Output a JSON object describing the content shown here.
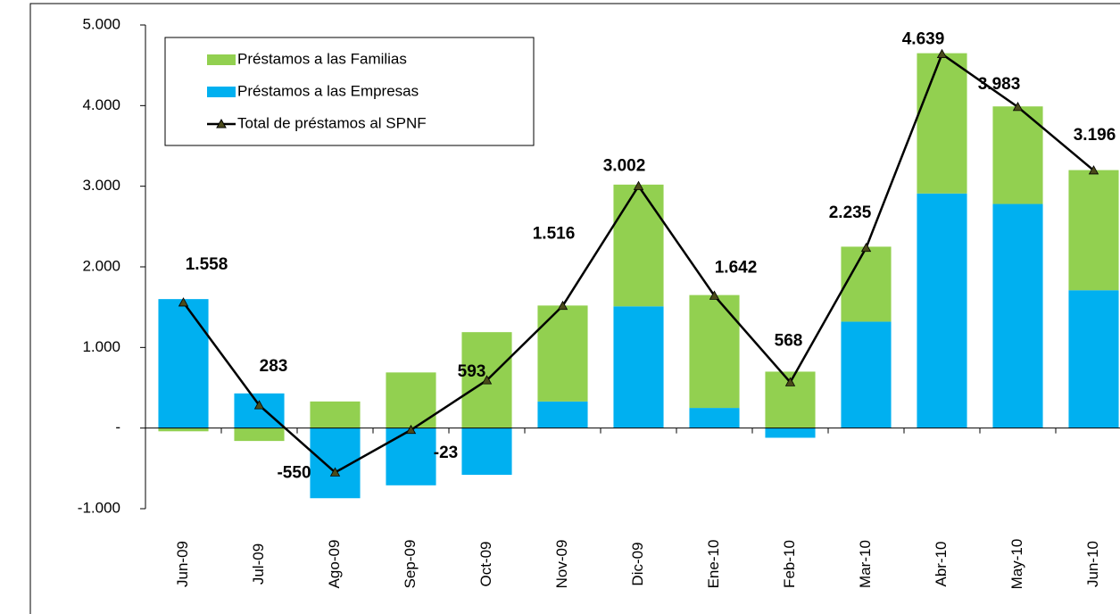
{
  "chart_data": {
    "type": "bar",
    "stacked": true,
    "categories": [
      "Jun-09",
      "Jul-09",
      "Ago-09",
      "Sep-09",
      "Oct-09",
      "Nov-09",
      "Dic-09",
      "Ene-10",
      "Feb-10",
      "Mar-10",
      "Abr-10",
      "May-10",
      "Jun-10"
    ],
    "series": [
      {
        "name": "Préstamos a las Familias",
        "type": "bar",
        "color": "#92d050",
        "values": [
          -40,
          -160,
          330,
          690,
          1190,
          1190,
          1510,
          1400,
          700,
          930,
          1740,
          1210,
          1490
        ]
      },
      {
        "name": "Préstamos a las Empresas",
        "type": "bar",
        "color": "#00b0f0",
        "values": [
          1600,
          430,
          -870,
          -710,
          -580,
          330,
          1510,
          250,
          -120,
          1320,
          2910,
          2780,
          1710
        ]
      },
      {
        "name": "Total de préstamos al SPNF",
        "type": "line",
        "color": "#000000",
        "marker_color": "#4a4a1a",
        "values": [
          1558,
          283,
          -550,
          -23,
          593,
          1516,
          3002,
          1642,
          568,
          2235,
          4639,
          3983,
          3196
        ],
        "value_labels": [
          "1.558",
          "283",
          "-550",
          "-23",
          "593",
          "1.516",
          "3.002",
          "1.642",
          "568",
          "2.235",
          "4.639",
          "3.983",
          "3.196"
        ]
      }
    ],
    "stack_order": [
      1,
      0
    ],
    "ylim": [
      -1000,
      5000
    ],
    "yticks": [
      {
        "value": -1000,
        "label": "-1.000"
      },
      {
        "value": 0,
        "label": "-"
      },
      {
        "value": 1000,
        "label": "1.000"
      },
      {
        "value": 2000,
        "label": "2.000"
      },
      {
        "value": 3000,
        "label": "3.000"
      },
      {
        "value": 4000,
        "label": "4.000"
      },
      {
        "value": 5000,
        "label": "5.000"
      }
    ],
    "legend": "top-left"
  }
}
